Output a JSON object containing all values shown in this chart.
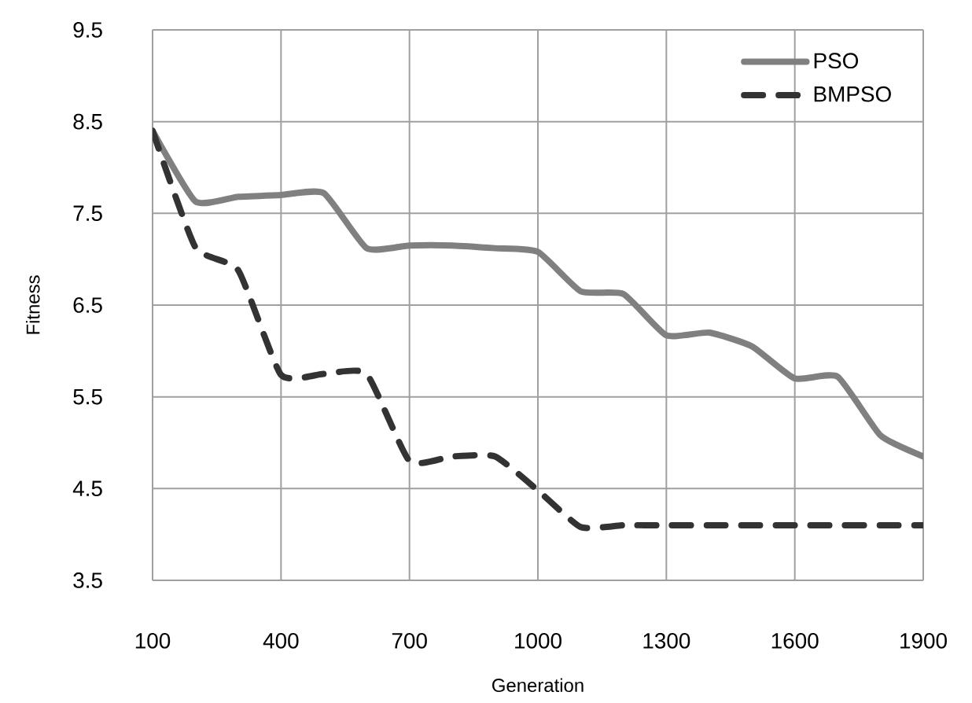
{
  "chart_data": {
    "type": "line",
    "xlabel": "Generation",
    "ylabel": "Fitness",
    "x": [
      100,
      200,
      300,
      400,
      500,
      600,
      700,
      800,
      900,
      1000,
      1100,
      1200,
      1300,
      1400,
      1500,
      1600,
      1700,
      1800,
      1900
    ],
    "series": [
      {
        "name": "PSO",
        "color": "#808080",
        "line_style": "solid",
        "values": [
          8.4,
          7.63,
          7.68,
          7.7,
          7.72,
          7.12,
          7.15,
          7.15,
          7.12,
          7.08,
          6.65,
          6.62,
          6.17,
          6.2,
          6.05,
          5.7,
          5.72,
          5.08,
          4.85
        ]
      },
      {
        "name": "BMPSO",
        "color": "#333333",
        "line_style": "dashed",
        "values": [
          8.4,
          7.13,
          6.88,
          5.74,
          5.75,
          5.75,
          4.8,
          4.85,
          4.85,
          4.48,
          4.08,
          4.1,
          4.1,
          4.1,
          4.1,
          4.1,
          4.1,
          4.1,
          4.1
        ]
      }
    ],
    "xlim": [
      100,
      1900
    ],
    "xticks": [
      100,
      400,
      700,
      1000,
      1300,
      1600,
      1900
    ],
    "ylim": [
      3.5,
      9.5
    ],
    "yticks": [
      3.5,
      4.5,
      5.5,
      6.5,
      7.5,
      8.5,
      9.5
    ],
    "grid": true,
    "legend": "top right",
    "marker": "none"
  }
}
